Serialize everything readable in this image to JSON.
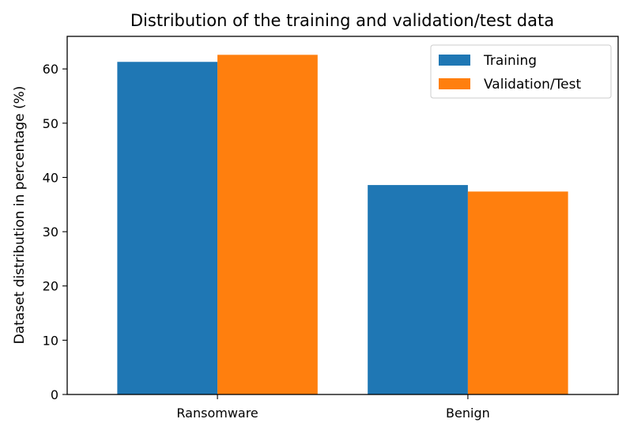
{
  "chart_data": {
    "type": "bar",
    "title": "Distribution of the training and validation/test data",
    "xlabel": "",
    "ylabel": "Dataset distribution in percentage (%)",
    "categories": [
      "Ransomware",
      "Benign"
    ],
    "series": [
      {
        "name": "Training",
        "color": "#1f77b4",
        "values": [
          61.3,
          38.6
        ]
      },
      {
        "name": "Validation/Test",
        "color": "#ff7f0e",
        "values": [
          62.6,
          37.4
        ]
      }
    ],
    "ylim": [
      0,
      66
    ],
    "yticks": [
      0,
      10,
      20,
      30,
      40,
      50,
      60
    ],
    "grid": false,
    "legend_position": "top-right"
  }
}
